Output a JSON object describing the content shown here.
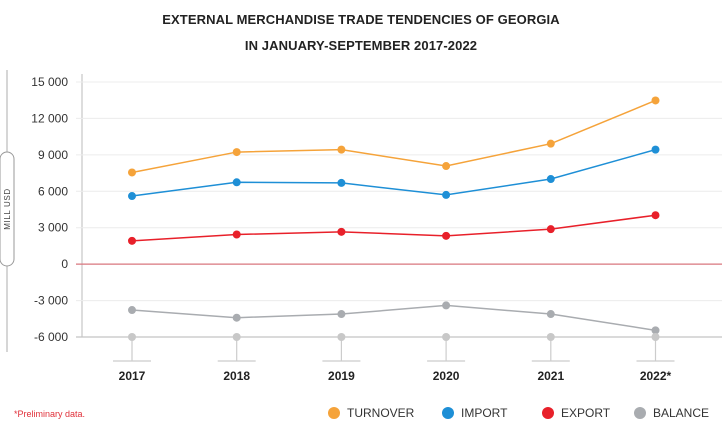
{
  "chart_data": {
    "type": "line",
    "title": "EXTERNAL MERCHANDISE TRADE TENDENCIES OF GEORGIA",
    "subtitle": "IN JANUARY-SEPTEMBER 2017-2022",
    "ylabel": "MILL USD",
    "xlabel": "",
    "categories": [
      "2017",
      "2018",
      "2019",
      "2020",
      "2021",
      "2022*"
    ],
    "ylim": [
      -6000,
      15000
    ],
    "yticks": [
      15000,
      12000,
      9000,
      6000,
      3000,
      0,
      -3000,
      -6000
    ],
    "ytick_labels": [
      "15 000",
      "12 000",
      "9 000",
      "6 000",
      "3 000",
      "0",
      "-3 000",
      "-6 000"
    ],
    "grid": true,
    "legend_position": "bottom-right",
    "series": [
      {
        "name": "TURNOVER",
        "color": "#f5a33a",
        "values": [
          7550,
          9230,
          9430,
          8080,
          9920,
          13480
        ]
      },
      {
        "name": "IMPORT",
        "color": "#1e8fd6",
        "values": [
          5610,
          6740,
          6690,
          5700,
          7010,
          9430
        ]
      },
      {
        "name": "EXPORT",
        "color": "#e8202a",
        "values": [
          1920,
          2440,
          2660,
          2330,
          2880,
          4030
        ]
      },
      {
        "name": "BALANCE",
        "color": "#a9acb0",
        "values": [
          -3780,
          -4410,
          -4110,
          -3400,
          -4110,
          -5450
        ]
      }
    ],
    "note": "*Preliminary data."
  }
}
